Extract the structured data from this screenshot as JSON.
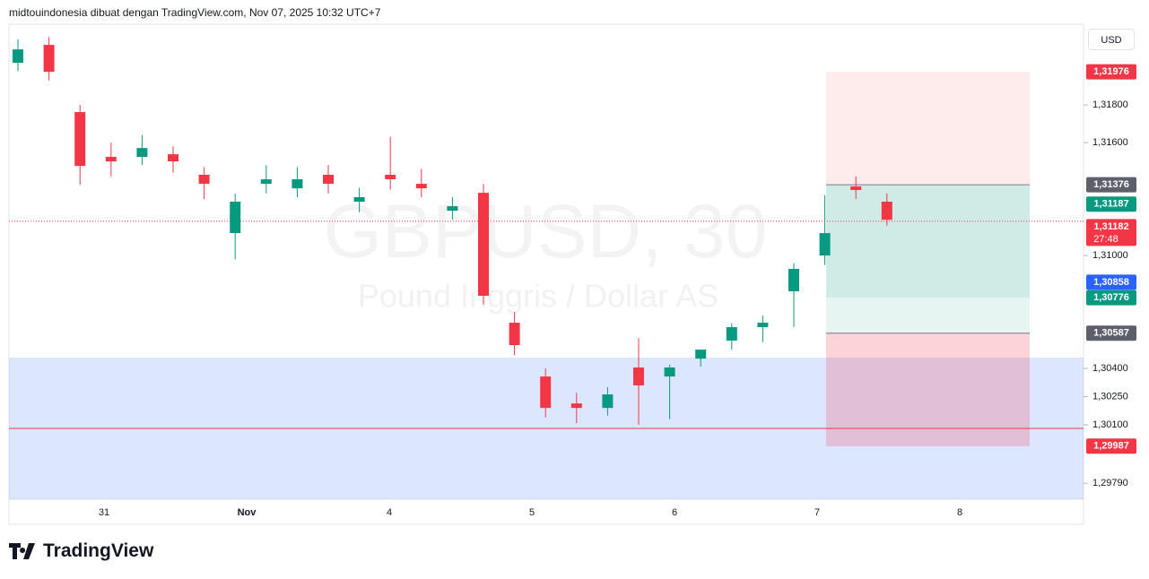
{
  "header": "midtouindonesia dibuat dengan TradingView.com, Nov 07, 2025 10:32 UTC+7",
  "currency": "USD",
  "watermark": {
    "symbol": "GBPUSD, 30",
    "description": "Pound Inggris / Dollar AS"
  },
  "logo": "TradingView",
  "chart_data": {
    "type": "candlestick",
    "x_axis_labels": [
      "31",
      "Nov",
      "4",
      "5",
      "6",
      "7",
      "8"
    ],
    "open": [
      1.32024,
      1.32119,
      1.31762,
      1.31524,
      1.31524,
      1.31538,
      1.31429,
      1.31119,
      1.31381,
      1.31357,
      1.31429,
      1.31286,
      1.31429,
      1.31381,
      1.31238,
      1.31333,
      1.30643,
      1.30357,
      1.30214,
      1.3019,
      1.30405,
      1.30357,
      1.30452,
      1.30548,
      1.30619,
      1.3081,
      1.31,
      1.31367,
      1.31286
    ],
    "high": [
      1.3215,
      1.3216,
      1.318,
      1.316,
      1.3164,
      1.3158,
      1.3147,
      1.3133,
      1.3148,
      1.3147,
      1.3148,
      1.3136,
      1.3163,
      1.3146,
      1.3131,
      1.3138,
      1.307,
      1.304,
      1.3027,
      1.303,
      1.3056,
      1.3042,
      1.305,
      1.3064,
      1.3068,
      1.3096,
      1.3132,
      1.3142,
      1.3133
    ],
    "low": [
      1.3198,
      1.3193,
      1.31376,
      1.3142,
      1.3148,
      1.3144,
      1.313,
      1.3098,
      1.3133,
      1.3131,
      1.3133,
      1.3123,
      1.3135,
      1.3131,
      1.3119,
      1.3074,
      1.3047,
      1.3014,
      1.3011,
      1.3015,
      1.301,
      1.3013,
      1.3041,
      1.305,
      1.3054,
      1.3062,
      1.3095,
      1.313,
      1.3116
    ],
    "close": [
      1.32095,
      1.31976,
      1.31476,
      1.315,
      1.31571,
      1.315,
      1.31381,
      1.31286,
      1.31405,
      1.31405,
      1.31381,
      1.3131,
      1.31405,
      1.31357,
      1.31262,
      1.30786,
      1.30524,
      1.3019,
      1.3019,
      1.30262,
      1.3031,
      1.30405,
      1.305,
      1.30619,
      1.30643,
      1.30929,
      1.31119,
      1.31348,
      1.3119
    ],
    "up_color": "#089981",
    "down_color": "#f23645",
    "ylim": [
      1.29705,
      1.32229
    ],
    "yticks": [
      {
        "value": 1.318,
        "label": "1,31800"
      },
      {
        "value": 1.316,
        "label": "1,31600"
      },
      {
        "value": 1.31,
        "label": "1,31000"
      },
      {
        "value": 1.304,
        "label": "1,30400"
      },
      {
        "value": 1.3025,
        "label": "1,30250"
      },
      {
        "value": 1.301,
        "label": "1,30100"
      },
      {
        "value": 1.2979,
        "label": "1,29790"
      }
    ],
    "price_tags": [
      {
        "value": 1.31976,
        "label": "1,31976",
        "color": "#f23645"
      },
      {
        "value": 1.31376,
        "label": "1,31376",
        "color": "#5d606b"
      },
      {
        "value": 1.31187,
        "label": "1,31187",
        "color": "#089981"
      },
      {
        "value": 1.31182,
        "label": "1,31182",
        "color": "#f23645"
      },
      {
        "value": 1.30858,
        "label": "1,30858",
        "color": "#2962ff"
      },
      {
        "value": 1.30776,
        "label": "1,30776",
        "color": "#089981"
      },
      {
        "value": 1.30587,
        "label": "1,30587",
        "color": "#5d606b"
      },
      {
        "value": 1.29987,
        "label": "1,29987",
        "color": "#f23645"
      }
    ],
    "countdown": "27:48"
  }
}
